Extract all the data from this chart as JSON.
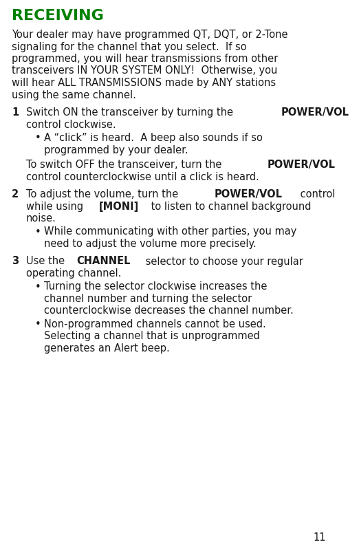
{
  "title": "RECEIVING",
  "title_color": "#008000",
  "bg_color": "#ffffff",
  "text_color": "#1a1a1a",
  "page_number": "11",
  "font_size": 10.5,
  "title_font_size": 16,
  "intro_text": "Your dealer may have programmed QT, DQT, or 2-Tone signaling for the channel that you select.  If so programmed, you will hear transmissions from other transceivers IN YOUR SYSTEM ONLY!  Otherwise, you will hear ALL TRANSMISSIONS made by ANY stations using the same channel.",
  "sections": [
    {
      "number": "1",
      "main_parts": [
        {
          "text_segments": [
            {
              "text": "Switch ON the transceiver by turning the ",
              "bold": false
            },
            {
              "text": "POWER/VOL",
              "bold": true
            },
            {
              "text": "\ncontrol clockwise.",
              "bold": false
            }
          ]
        }
      ],
      "bullets": [
        {
          "text_segments": [
            {
              "text": "A “click” is heard.  A beep also sounds if so\nprogrammed by your dealer.",
              "bold": false
            }
          ]
        }
      ],
      "continuation_parts": [
        {
          "text_segments": [
            {
              "text": "To switch OFF the transceiver, turn the ",
              "bold": false
            },
            {
              "text": "POWER/VOL",
              "bold": true
            },
            {
              "text": "\ncontrol counterclockwise until a click is heard.",
              "bold": false
            }
          ]
        }
      ]
    },
    {
      "number": "2",
      "main_parts": [
        {
          "text_segments": [
            {
              "text": "To adjust the volume, turn the ",
              "bold": false
            },
            {
              "text": "POWER/VOL",
              "bold": true
            },
            {
              "text": " control\nwhile using ",
              "bold": false
            },
            {
              "text": "[MONI]",
              "bold": true
            },
            {
              "text": " to listen to channel background\nnoise.",
              "bold": false
            }
          ]
        }
      ],
      "bullets": [
        {
          "text_segments": [
            {
              "text": "While communicating with other parties, you may\nneed to adjust the volume more precisely.",
              "bold": false
            }
          ]
        }
      ],
      "continuation_parts": []
    },
    {
      "number": "3",
      "main_parts": [
        {
          "text_segments": [
            {
              "text": "Use the ",
              "bold": false
            },
            {
              "text": "CHANNEL",
              "bold": true
            },
            {
              "text": " selector to choose your regular\noperating channel.",
              "bold": false
            }
          ]
        }
      ],
      "bullets": [
        {
          "text_segments": [
            {
              "text": "Turning the selector clockwise increases the\nchannel number and turning the selector\ncounterclockwise decreases the channel number.",
              "bold": false
            }
          ]
        },
        {
          "text_segments": [
            {
              "text": "Non-programmed channels cannot be used.\nSelecting a channel that is unprogrammed\ngenerates an Alert beep.",
              "bold": false
            }
          ]
        }
      ],
      "continuation_parts": []
    }
  ]
}
